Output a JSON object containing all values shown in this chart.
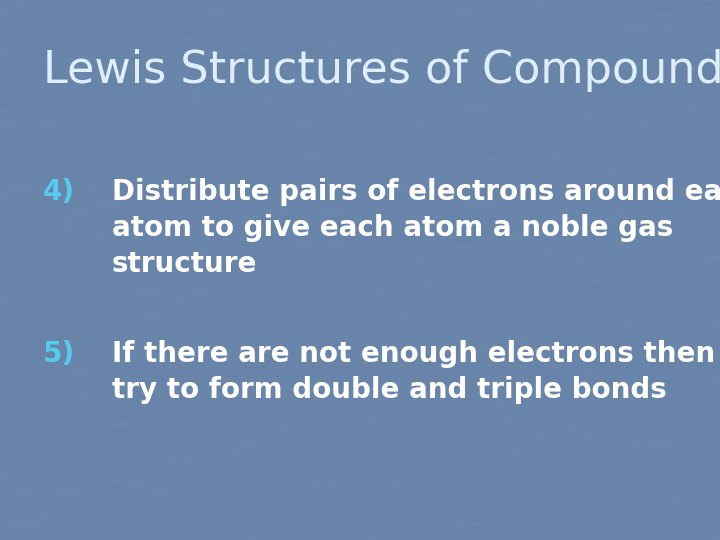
{
  "title": "Lewis Structures of Compounds",
  "title_color": "#ddeeff",
  "title_fontsize": 32,
  "bg_color": "#6a85aa",
  "bullet_number_color": "#55ccee",
  "bullet_text_color": "#ffffff",
  "bullet_fontsize": 20,
  "bullets": [
    {
      "number": "4)",
      "text": "Distribute pairs of electrons around each\natom to give each atom a noble gas\nstructure"
    },
    {
      "number": "5)",
      "text": "If there are not enough electrons then\ntry to form double and triple bonds"
    }
  ]
}
